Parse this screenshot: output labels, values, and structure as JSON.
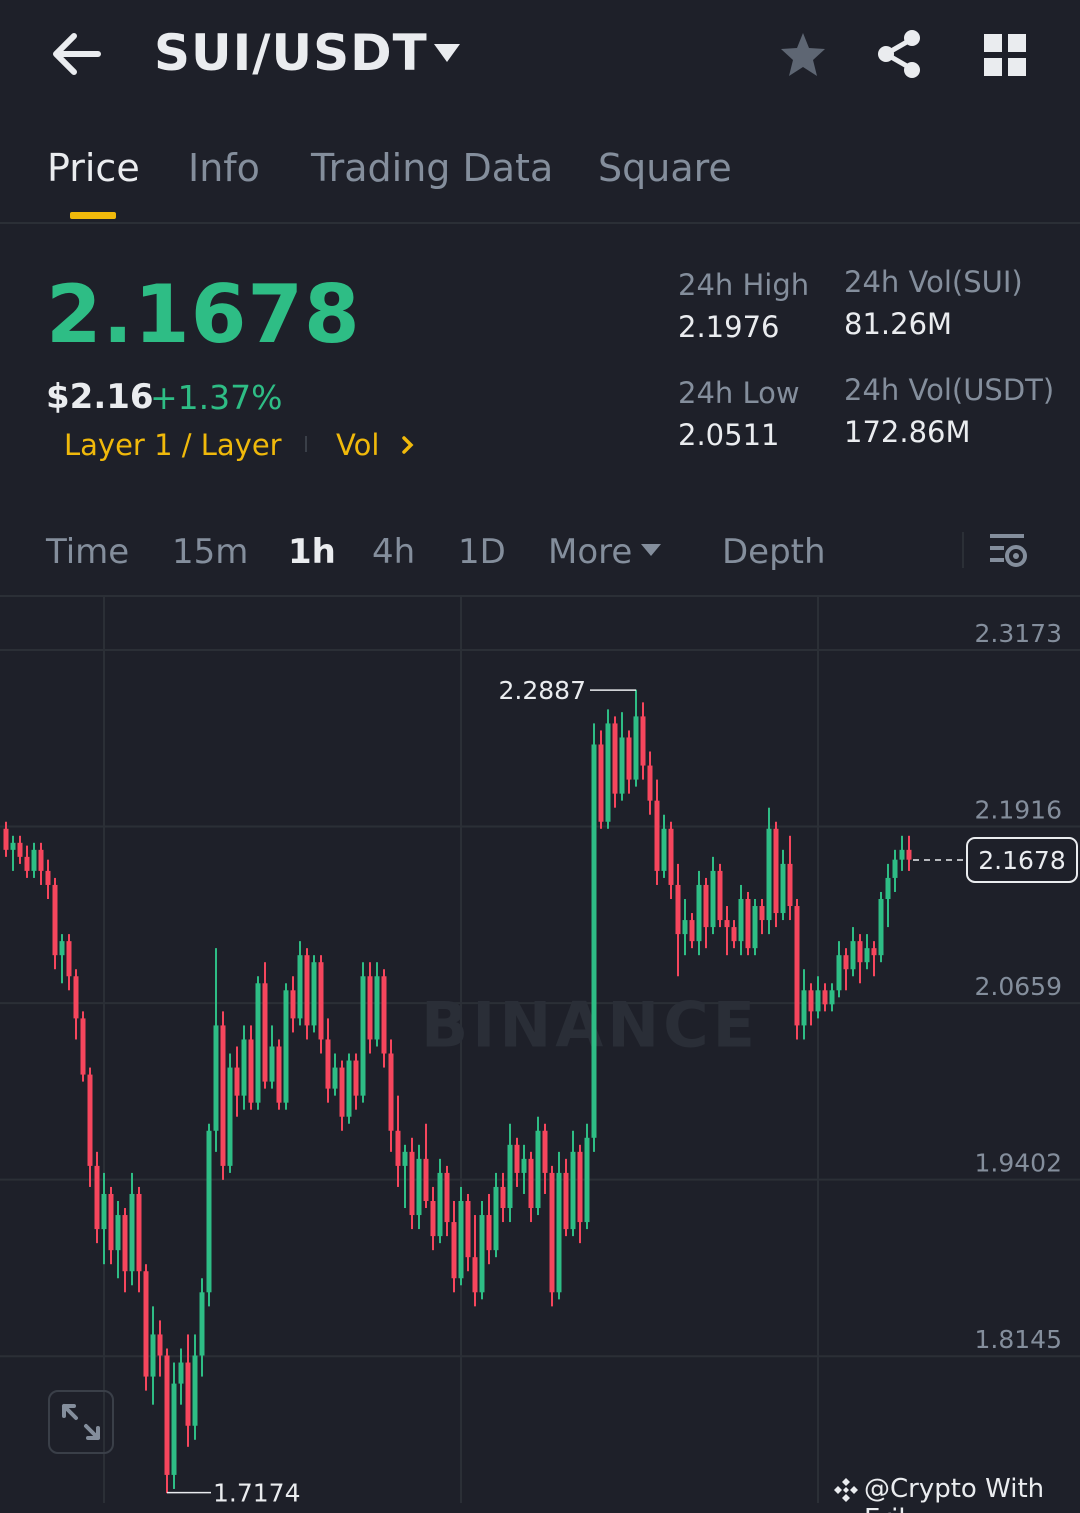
{
  "header": {
    "pair": "SUI/USDT",
    "icons": [
      "back-arrow-icon",
      "caret-down-icon",
      "star-icon",
      "share-icon",
      "grid-icon"
    ]
  },
  "tabs": [
    {
      "label": "Price",
      "active": true
    },
    {
      "label": "Info",
      "active": false
    },
    {
      "label": "Trading Data",
      "active": false
    },
    {
      "label": "Square",
      "active": false
    }
  ],
  "ticker": {
    "last_price": "2.1678",
    "usd_price": "$2.16",
    "change": "+1.37%",
    "tag_category": "Layer 1 / Layer",
    "tag_vol": "Vol",
    "high_label": "24h High",
    "high_value": "2.1976",
    "low_label": "24h Low",
    "low_value": "2.0511",
    "vol_base_label": "24h Vol(SUI)",
    "vol_base_value": "81.26M",
    "vol_quote_label": "24h Vol(USDT)",
    "vol_quote_value": "172.86M"
  },
  "intervals": {
    "items": [
      "Time",
      "15m",
      "1h",
      "4h",
      "1D",
      "More"
    ],
    "active": "1h",
    "depth": "Depth"
  },
  "colors": {
    "up": "#2ebd85",
    "down": "#f6465d",
    "accent": "#f0b90b",
    "background": "#1e2029"
  },
  "chart_data": {
    "type": "candlestick",
    "interval": "1h",
    "y_axis_ticks": [
      "2.3173",
      "2.1916",
      "2.0659",
      "1.9402",
      "1.8145"
    ],
    "ylim": [
      1.71,
      2.355
    ],
    "current_price": "2.1678",
    "max_annotation": "2.2887",
    "min_annotation": "1.7174",
    "watermark": "BINANCE",
    "credit": "@Crypto With Erik",
    "candles": [
      [
        2.19,
        2.195,
        2.17,
        2.175
      ],
      [
        2.175,
        2.185,
        2.16,
        2.18
      ],
      [
        2.18,
        2.185,
        2.165,
        2.17
      ],
      [
        2.17,
        2.178,
        2.155,
        2.16
      ],
      [
        2.16,
        2.18,
        2.155,
        2.175
      ],
      [
        2.175,
        2.18,
        2.15,
        2.16
      ],
      [
        2.16,
        2.168,
        2.14,
        2.15
      ],
      [
        2.15,
        2.155,
        2.09,
        2.1
      ],
      [
        2.1,
        2.115,
        2.08,
        2.11
      ],
      [
        2.11,
        2.115,
        2.075,
        2.085
      ],
      [
        2.085,
        2.09,
        2.04,
        2.055
      ],
      [
        2.055,
        2.06,
        2.01,
        2.015
      ],
      [
        2.015,
        2.02,
        1.935,
        1.95
      ],
      [
        1.95,
        1.96,
        1.895,
        1.905
      ],
      [
        1.905,
        1.945,
        1.88,
        1.93
      ],
      [
        1.93,
        1.935,
        1.88,
        1.89
      ],
      [
        1.89,
        1.925,
        1.87,
        1.915
      ],
      [
        1.915,
        1.92,
        1.86,
        1.875
      ],
      [
        1.875,
        1.945,
        1.865,
        1.93
      ],
      [
        1.93,
        1.935,
        1.86,
        1.875
      ],
      [
        1.875,
        1.88,
        1.79,
        1.8
      ],
      [
        1.8,
        1.85,
        1.78,
        1.83
      ],
      [
        1.83,
        1.84,
        1.8,
        1.815
      ],
      [
        1.815,
        1.82,
        1.717,
        1.73
      ],
      [
        1.73,
        1.81,
        1.72,
        1.795
      ],
      [
        1.795,
        1.82,
        1.78,
        1.81
      ],
      [
        1.81,
        1.83,
        1.75,
        1.765
      ],
      [
        1.765,
        1.83,
        1.755,
        1.815
      ],
      [
        1.815,
        1.87,
        1.8,
        1.86
      ],
      [
        1.86,
        1.98,
        1.85,
        1.975
      ],
      [
        1.975,
        2.105,
        1.96,
        2.05
      ],
      [
        2.05,
        2.06,
        1.94,
        1.95
      ],
      [
        1.95,
        2.03,
        1.945,
        2.02
      ],
      [
        2.02,
        2.035,
        1.985,
        2.0
      ],
      [
        2.0,
        2.05,
        1.99,
        2.04
      ],
      [
        2.04,
        2.05,
        1.99,
        1.995
      ],
      [
        1.995,
        2.085,
        1.99,
        2.08
      ],
      [
        2.08,
        2.095,
        2.005,
        2.01
      ],
      [
        2.01,
        2.05,
        2.005,
        2.035
      ],
      [
        2.035,
        2.04,
        1.99,
        1.995
      ],
      [
        1.995,
        2.08,
        1.99,
        2.075
      ],
      [
        2.075,
        2.085,
        2.045,
        2.055
      ],
      [
        2.055,
        2.11,
        2.05,
        2.1
      ],
      [
        2.1,
        2.105,
        2.04,
        2.05
      ],
      [
        2.05,
        2.1,
        2.045,
        2.095
      ],
      [
        2.095,
        2.1,
        2.03,
        2.04
      ],
      [
        2.04,
        2.055,
        1.995,
        2.005
      ],
      [
        2.005,
        2.03,
        2.0,
        2.02
      ],
      [
        2.02,
        2.025,
        1.975,
        1.985
      ],
      [
        1.985,
        2.03,
        1.98,
        2.025
      ],
      [
        2.025,
        2.03,
        1.99,
        2.0
      ],
      [
        2.0,
        2.095,
        1.995,
        2.085
      ],
      [
        2.085,
        2.095,
        2.03,
        2.04
      ],
      [
        2.04,
        2.095,
        2.035,
        2.085
      ],
      [
        2.085,
        2.09,
        2.02,
        2.03
      ],
      [
        2.03,
        2.04,
        1.96,
        1.975
      ],
      [
        1.975,
        2.0,
        1.935,
        1.95
      ],
      [
        1.95,
        1.965,
        1.92,
        1.96
      ],
      [
        1.96,
        1.97,
        1.905,
        1.915
      ],
      [
        1.915,
        1.965,
        1.905,
        1.955
      ],
      [
        1.955,
        1.98,
        1.92,
        1.925
      ],
      [
        1.925,
        1.935,
        1.89,
        1.9
      ],
      [
        1.9,
        1.955,
        1.895,
        1.945
      ],
      [
        1.945,
        1.95,
        1.9,
        1.91
      ],
      [
        1.91,
        1.925,
        1.86,
        1.87
      ],
      [
        1.87,
        1.935,
        1.865,
        1.925
      ],
      [
        1.925,
        1.93,
        1.875,
        1.885
      ],
      [
        1.885,
        1.915,
        1.85,
        1.86
      ],
      [
        1.86,
        1.925,
        1.855,
        1.915
      ],
      [
        1.915,
        1.93,
        1.88,
        1.89
      ],
      [
        1.89,
        1.945,
        1.885,
        1.935
      ],
      [
        1.935,
        1.945,
        1.91,
        1.92
      ],
      [
        1.92,
        1.98,
        1.91,
        1.965
      ],
      [
        1.965,
        1.97,
        1.935,
        1.945
      ],
      [
        1.945,
        1.965,
        1.93,
        1.955
      ],
      [
        1.955,
        1.96,
        1.91,
        1.92
      ],
      [
        1.92,
        1.985,
        1.915,
        1.975
      ],
      [
        1.975,
        1.98,
        1.93,
        1.945
      ],
      [
        1.945,
        1.95,
        1.85,
        1.86
      ],
      [
        1.86,
        1.96,
        1.855,
        1.945
      ],
      [
        1.945,
        1.955,
        1.9,
        1.905
      ],
      [
        1.905,
        1.975,
        1.9,
        1.96
      ],
      [
        1.96,
        1.965,
        1.895,
        1.91
      ],
      [
        1.91,
        1.98,
        1.905,
        1.97
      ],
      [
        1.97,
        2.265,
        1.96,
        2.25
      ],
      [
        2.25,
        2.26,
        2.19,
        2.195
      ],
      [
        2.195,
        2.275,
        2.19,
        2.265
      ],
      [
        2.265,
        2.27,
        2.205,
        2.215
      ],
      [
        2.215,
        2.273,
        2.21,
        2.255
      ],
      [
        2.255,
        2.26,
        2.215,
        2.225
      ],
      [
        2.225,
        2.289,
        2.22,
        2.27
      ],
      [
        2.27,
        2.28,
        2.225,
        2.235
      ],
      [
        2.235,
        2.245,
        2.2,
        2.21
      ],
      [
        2.21,
        2.225,
        2.15,
        2.16
      ],
      [
        2.16,
        2.2,
        2.155,
        2.19
      ],
      [
        2.19,
        2.195,
        2.14,
        2.15
      ],
      [
        2.15,
        2.165,
        2.085,
        2.115
      ],
      [
        2.115,
        2.14,
        2.1,
        2.125
      ],
      [
        2.125,
        2.13,
        2.105,
        2.11
      ],
      [
        2.11,
        2.16,
        2.1,
        2.15
      ],
      [
        2.15,
        2.155,
        2.105,
        2.12
      ],
      [
        2.12,
        2.17,
        2.115,
        2.16
      ],
      [
        2.16,
        2.165,
        2.12,
        2.125
      ],
      [
        2.125,
        2.135,
        2.1,
        2.12
      ],
      [
        2.12,
        2.125,
        2.105,
        2.11
      ],
      [
        2.11,
        2.15,
        2.1,
        2.14
      ],
      [
        2.14,
        2.145,
        2.1,
        2.105
      ],
      [
        2.105,
        2.14,
        2.1,
        2.135
      ],
      [
        2.135,
        2.14,
        2.115,
        2.125
      ],
      [
        2.125,
        2.205,
        2.115,
        2.19
      ],
      [
        2.19,
        2.195,
        2.12,
        2.13
      ],
      [
        2.13,
        2.175,
        2.125,
        2.165
      ],
      [
        2.165,
        2.185,
        2.125,
        2.135
      ],
      [
        2.135,
        2.14,
        2.04,
        2.05
      ],
      [
        2.05,
        2.09,
        2.04,
        2.075
      ],
      [
        2.075,
        2.08,
        2.05,
        2.06
      ],
      [
        2.06,
        2.085,
        2.055,
        2.075
      ],
      [
        2.075,
        2.08,
        2.06,
        2.065
      ],
      [
        2.065,
        2.08,
        2.06,
        2.075
      ],
      [
        2.075,
        2.11,
        2.07,
        2.1
      ],
      [
        2.1,
        2.105,
        2.075,
        2.09
      ],
      [
        2.09,
        2.12,
        2.085,
        2.11
      ],
      [
        2.11,
        2.115,
        2.08,
        2.095
      ],
      [
        2.095,
        2.115,
        2.09,
        2.105
      ],
      [
        2.105,
        2.11,
        2.085,
        2.1
      ],
      [
        2.1,
        2.145,
        2.095,
        2.14
      ],
      [
        2.14,
        2.165,
        2.12,
        2.155
      ],
      [
        2.155,
        2.175,
        2.145,
        2.168
      ],
      [
        2.168,
        2.185,
        2.16,
        2.175
      ],
      [
        2.175,
        2.185,
        2.16,
        2.168
      ]
    ]
  }
}
